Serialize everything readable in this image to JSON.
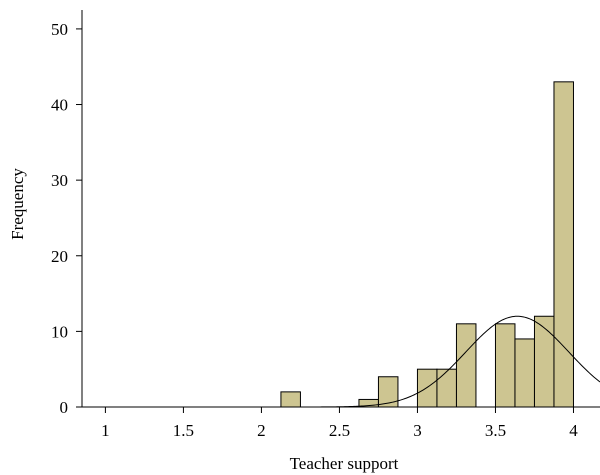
{
  "chart_data": {
    "type": "bar",
    "subtype": "histogram with normal curve",
    "xlabel": "Teacher support",
    "ylabel": "Frequency",
    "xlim": [
      0.85,
      4.17
    ],
    "ylim": [
      0,
      52.5
    ],
    "xticks": [
      "1",
      "1.5",
      "2",
      "2.5",
      "3",
      "3.5",
      "4"
    ],
    "yticks": [
      "0",
      "10",
      "20",
      "30",
      "40",
      "50"
    ],
    "bin_width": 0.125,
    "bins": [
      {
        "x0": 2.125,
        "x1": 2.25,
        "count": 2
      },
      {
        "x0": 2.625,
        "x1": 2.75,
        "count": 1
      },
      {
        "x0": 2.75,
        "x1": 2.875,
        "count": 4
      },
      {
        "x0": 3.0,
        "x1": 3.125,
        "count": 5
      },
      {
        "x0": 3.125,
        "x1": 3.25,
        "count": 5
      },
      {
        "x0": 3.25,
        "x1": 3.375,
        "count": 11
      },
      {
        "x0": 3.5,
        "x1": 3.625,
        "count": 11
      },
      {
        "x0": 3.625,
        "x1": 3.75,
        "count": 9
      },
      {
        "x0": 3.75,
        "x1": 3.875,
        "count": 12
      },
      {
        "x0": 3.875,
        "x1": 4.0,
        "count": 43
      }
    ],
    "normal_curve": {
      "mean": 3.64,
      "sd": 0.33,
      "peak": 12
    },
    "bar_color": "#cdc591",
    "grid": false,
    "legend": "none"
  }
}
